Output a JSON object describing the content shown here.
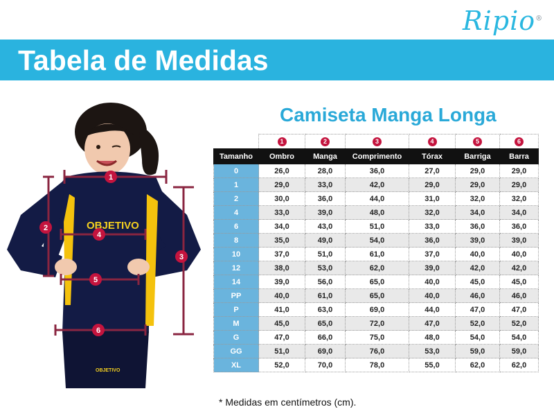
{
  "brand": {
    "name": "Ripio",
    "registered": "®"
  },
  "header": {
    "title": "Tabela de Medidas"
  },
  "product": {
    "title": "Camiseta Manga Longa"
  },
  "shirt_print": {
    "text": "OBJETIVO"
  },
  "figure_labels": [
    "1",
    "2",
    "3",
    "4",
    "5",
    "6"
  ],
  "table": {
    "measure_numbers": [
      "1",
      "2",
      "3",
      "4",
      "5",
      "6"
    ],
    "headers": [
      "Tamanho",
      "Ombro",
      "Manga",
      "Comprimento",
      "Tórax",
      "Barriga",
      "Barra"
    ],
    "rows": [
      [
        "0",
        "26,0",
        "28,0",
        "36,0",
        "27,0",
        "29,0",
        "29,0"
      ],
      [
        "1",
        "29,0",
        "33,0",
        "42,0",
        "29,0",
        "29,0",
        "29,0"
      ],
      [
        "2",
        "30,0",
        "36,0",
        "44,0",
        "31,0",
        "32,0",
        "32,0"
      ],
      [
        "4",
        "33,0",
        "39,0",
        "48,0",
        "32,0",
        "34,0",
        "34,0"
      ],
      [
        "6",
        "34,0",
        "43,0",
        "51,0",
        "33,0",
        "36,0",
        "36,0"
      ],
      [
        "8",
        "35,0",
        "49,0",
        "54,0",
        "36,0",
        "39,0",
        "39,0"
      ],
      [
        "10",
        "37,0",
        "51,0",
        "61,0",
        "37,0",
        "40,0",
        "40,0"
      ],
      [
        "12",
        "38,0",
        "53,0",
        "62,0",
        "39,0",
        "42,0",
        "42,0"
      ],
      [
        "14",
        "39,0",
        "56,0",
        "65,0",
        "40,0",
        "45,0",
        "45,0"
      ],
      [
        "PP",
        "40,0",
        "61,0",
        "65,0",
        "40,0",
        "46,0",
        "46,0"
      ],
      [
        "P",
        "41,0",
        "63,0",
        "69,0",
        "44,0",
        "47,0",
        "47,0"
      ],
      [
        "M",
        "45,0",
        "65,0",
        "72,0",
        "47,0",
        "52,0",
        "52,0"
      ],
      [
        "G",
        "47,0",
        "66,0",
        "75,0",
        "48,0",
        "54,0",
        "54,0"
      ],
      [
        "GG",
        "51,0",
        "69,0",
        "76,0",
        "53,0",
        "59,0",
        "59,0"
      ],
      [
        "XL",
        "52,0",
        "70,0",
        "78,0",
        "55,0",
        "62,0",
        "62,0"
      ]
    ]
  },
  "footnote": "* Medidas em centímetros (cm)."
}
